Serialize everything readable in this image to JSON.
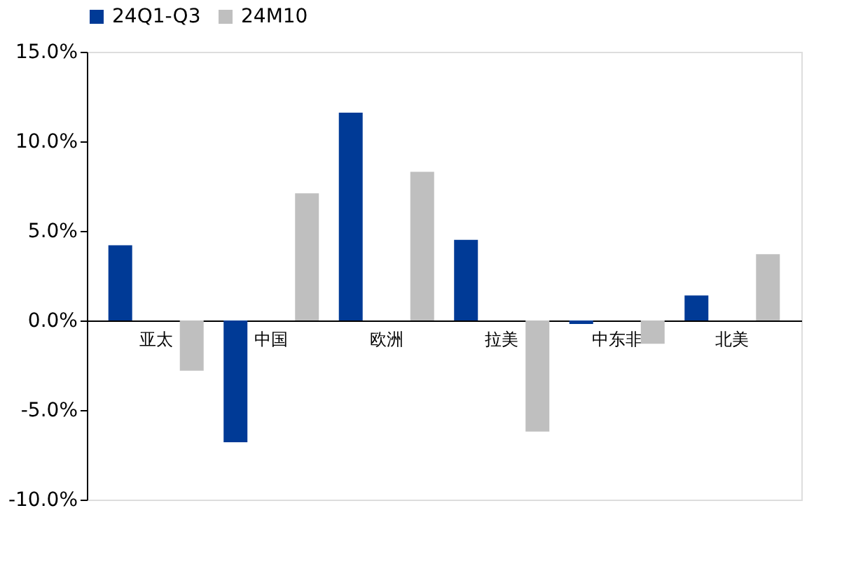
{
  "chart_data": {
    "type": "bar",
    "categories": [
      "亚太",
      "中国",
      "欧洲",
      "拉美",
      "中东非",
      "北美"
    ],
    "series": [
      {
        "name": "24Q1-Q3",
        "color": "#003a96",
        "values": [
          4.2,
          -6.8,
          11.6,
          4.5,
          -0.2,
          1.4
        ]
      },
      {
        "name": "24M10",
        "color": "#bfbfbf",
        "values": [
          -2.8,
          7.1,
          8.3,
          -6.2,
          -1.3,
          3.7
        ]
      }
    ],
    "ylim": [
      -10,
      15
    ],
    "yticks": [
      {
        "value": -10,
        "label": "-10.0%"
      },
      {
        "value": -5,
        "label": "-5.0%"
      },
      {
        "value": 0,
        "label": "0.0%"
      },
      {
        "value": 5,
        "label": "5.0%"
      },
      {
        "value": 10,
        "label": "10.0%"
      },
      {
        "value": 15,
        "label": "15.0%"
      }
    ],
    "grid": false,
    "legend": "top"
  }
}
